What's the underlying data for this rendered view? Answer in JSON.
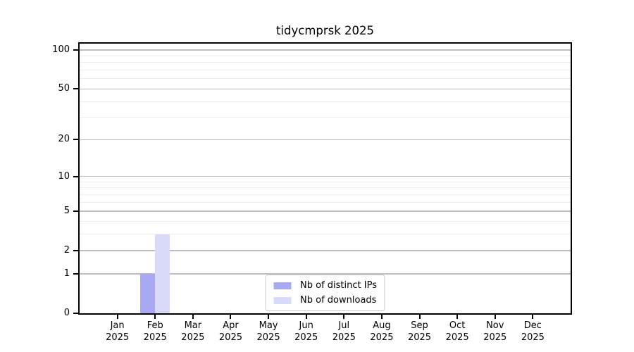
{
  "chart_data": {
    "type": "bar",
    "title": "tidycmprsk 2025",
    "x_months": [
      "Jan",
      "Feb",
      "Mar",
      "Apr",
      "May",
      "Jun",
      "Jul",
      "Aug",
      "Sep",
      "Oct",
      "Nov",
      "Dec"
    ],
    "x_year": "2025",
    "series": [
      {
        "name": "Nb of distinct IPs",
        "color": "#a9a9f3",
        "values": [
          0,
          1,
          0,
          0,
          0,
          0,
          0,
          0,
          0,
          0,
          0,
          0
        ]
      },
      {
        "name": "Nb of downloads",
        "color": "#d9d9f8",
        "values": [
          0,
          3,
          0,
          0,
          0,
          0,
          0,
          0,
          0,
          0,
          0,
          0
        ]
      }
    ],
    "y_scale": "log1p",
    "y_major_ticks": [
      0,
      1,
      2,
      5,
      10,
      20,
      50,
      100
    ],
    "y_minor_gridlines": [
      3,
      4,
      6,
      7,
      8,
      9,
      30,
      40,
      60,
      70,
      80,
      90
    ],
    "ylim": [
      0,
      112
    ],
    "grid": "horizontal",
    "legend_position": "lower center",
    "colors": {
      "major_grid": "#bdbdbd",
      "minor_grid": "#ececec",
      "axis": "#000000",
      "text": "#000000"
    }
  }
}
